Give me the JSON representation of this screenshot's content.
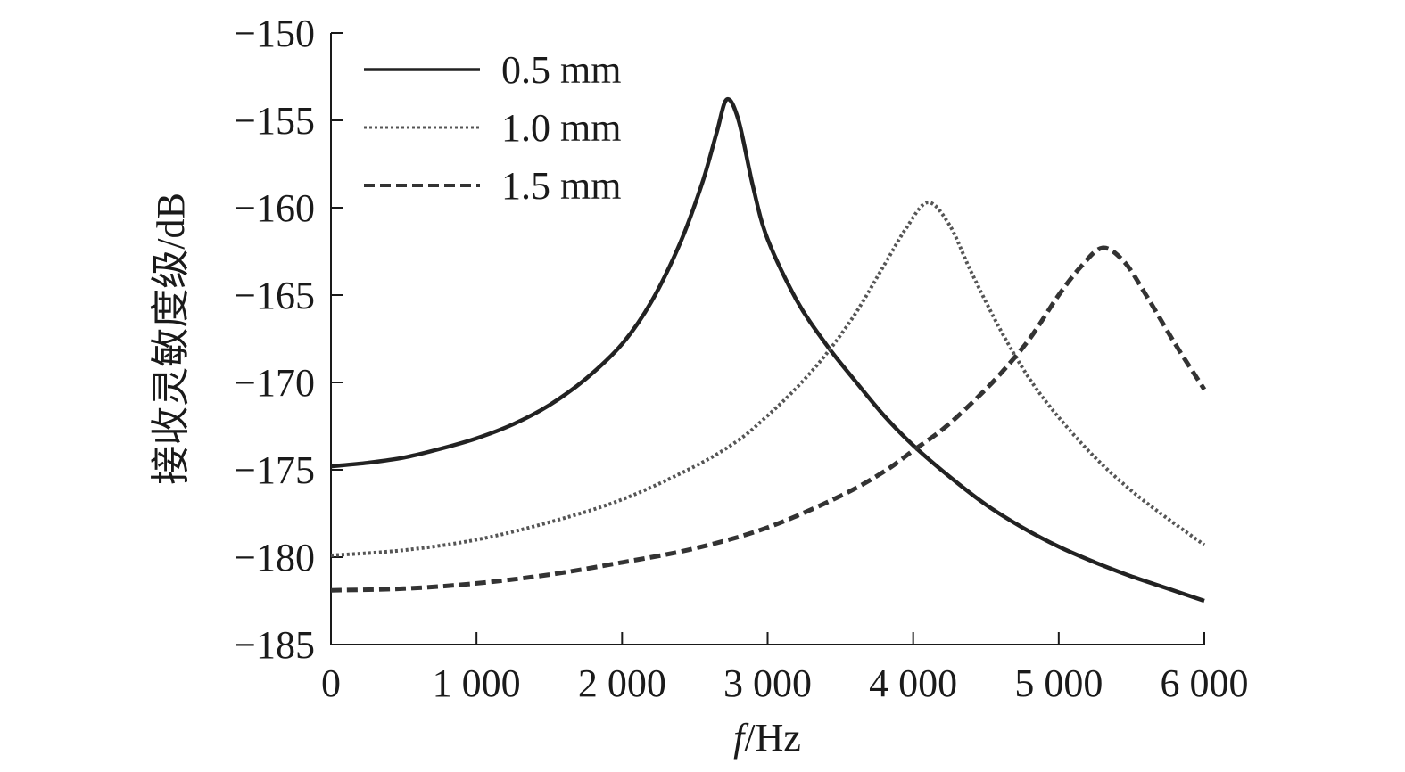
{
  "chart_data": {
    "type": "line",
    "title": "",
    "xlabel_italic": "f",
    "xlabel_rest": "/Hz",
    "ylabel": "接收灵敏度级/dB",
    "xlim": [
      0,
      6000
    ],
    "ylim": [
      -185,
      -150
    ],
    "xticks": [
      0,
      1000,
      2000,
      3000,
      4000,
      5000,
      6000
    ],
    "xtick_labels": [
      "0",
      "1 000",
      "2 000",
      "3 000",
      "4 000",
      "5 000",
      "6 000"
    ],
    "yticks": [
      -150,
      -155,
      -160,
      -165,
      -170,
      -175,
      -180,
      -185
    ],
    "ytick_labels": [
      "−150",
      "−155",
      "−160",
      "−165",
      "−170",
      "−175",
      "−180",
      "−185"
    ],
    "legend_position": "top-left",
    "series": [
      {
        "name": "0.5 mm",
        "style": "solid",
        "color": "#222222",
        "x": [
          0,
          250,
          500,
          750,
          1000,
          1250,
          1500,
          1750,
          2000,
          2200,
          2400,
          2550,
          2650,
          2720,
          2800,
          2900,
          3000,
          3200,
          3400,
          3600,
          3800,
          4000,
          4250,
          4500,
          4750,
          5000,
          5250,
          5500,
          5750,
          6000
        ],
        "values": [
          -174.8,
          -174.6,
          -174.3,
          -173.8,
          -173.2,
          -172.4,
          -171.3,
          -169.8,
          -167.8,
          -165.4,
          -162.0,
          -158.6,
          -155.7,
          -153.8,
          -155.0,
          -158.8,
          -161.8,
          -165.3,
          -167.8,
          -169.9,
          -171.9,
          -173.6,
          -175.4,
          -177.0,
          -178.3,
          -179.4,
          -180.3,
          -181.1,
          -181.8,
          -182.5
        ]
      },
      {
        "name": "1.0 mm",
        "style": "dotted",
        "color": "#555555",
        "x": [
          0,
          500,
          1000,
          1500,
          2000,
          2500,
          2800,
          3000,
          3200,
          3400,
          3600,
          3800,
          3950,
          4100,
          4250,
          4400,
          4600,
          4800,
          5000,
          5250,
          5500,
          5750,
          6000
        ],
        "values": [
          -179.9,
          -179.6,
          -179.0,
          -178.0,
          -176.7,
          -174.8,
          -173.3,
          -171.9,
          -170.3,
          -168.4,
          -166.1,
          -163.3,
          -161.2,
          -159.7,
          -161.0,
          -163.7,
          -167.0,
          -169.8,
          -172.0,
          -174.3,
          -176.2,
          -177.8,
          -179.3
        ]
      },
      {
        "name": "1.5 mm",
        "style": "dashed",
        "color": "#333333",
        "x": [
          0,
          500,
          1000,
          1500,
          2000,
          2500,
          3000,
          3500,
          3800,
          4000,
          4200,
          4400,
          4600,
          4800,
          5000,
          5150,
          5300,
          5450,
          5600,
          5800,
          6000
        ],
        "values": [
          -181.9,
          -181.8,
          -181.5,
          -181.0,
          -180.3,
          -179.5,
          -178.3,
          -176.5,
          -175.1,
          -173.9,
          -172.7,
          -171.2,
          -169.5,
          -167.5,
          -165.0,
          -163.4,
          -162.3,
          -163.1,
          -165.0,
          -167.8,
          -170.4
        ]
      }
    ]
  }
}
